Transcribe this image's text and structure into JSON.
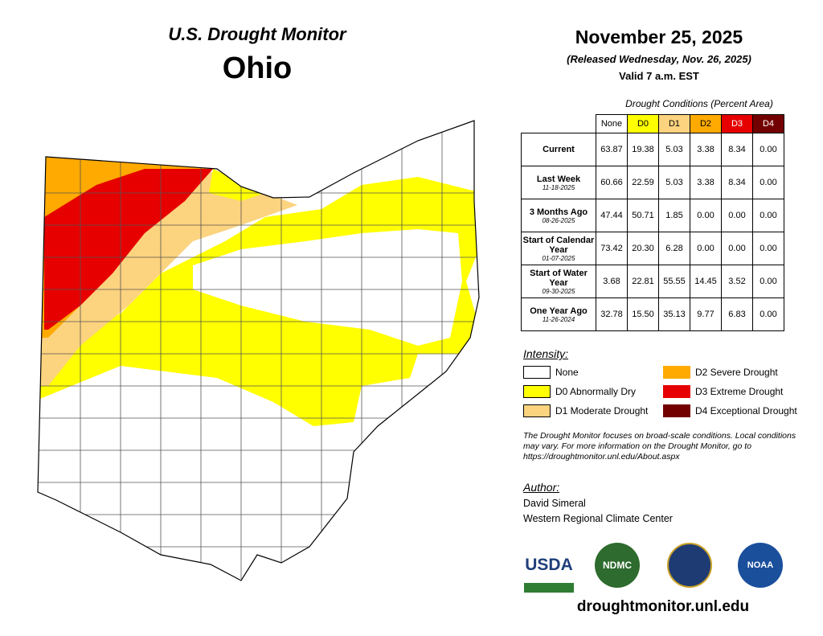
{
  "header": {
    "title": "U.S. Drought Monitor",
    "state": "Ohio",
    "date": "November 25, 2025",
    "released": "(Released Wednesday, Nov. 26, 2025)",
    "valid": "Valid 7 a.m. EST"
  },
  "table": {
    "caption": "Drought Conditions (Percent Area)",
    "columns": [
      {
        "label": "None",
        "color": "#ffffff",
        "text": "#000000"
      },
      {
        "label": "D0",
        "color": "#ffff00",
        "text": "#000000"
      },
      {
        "label": "D1",
        "color": "#fcd37f",
        "text": "#000000"
      },
      {
        "label": "D2",
        "color": "#ffaa00",
        "text": "#000000"
      },
      {
        "label": "D3",
        "color": "#e60000",
        "text": "#ffffff"
      },
      {
        "label": "D4",
        "color": "#730000",
        "text": "#ffffff"
      }
    ],
    "rows": [
      {
        "label": "Current",
        "values": [
          "63.87",
          "19.38",
          "5.03",
          "3.38",
          "8.34",
          "0.00"
        ]
      },
      {
        "label": "Last Week",
        "date": "11-18-2025",
        "values": [
          "60.66",
          "22.59",
          "5.03",
          "3.38",
          "8.34",
          "0.00"
        ]
      },
      {
        "label": "3 Months Ago",
        "date": "08-26-2025",
        "values": [
          "47.44",
          "50.71",
          "1.85",
          "0.00",
          "0.00",
          "0.00"
        ]
      },
      {
        "label": "Start of Calendar Year",
        "date": "01-07-2025",
        "values": [
          "73.42",
          "20.30",
          "6.28",
          "0.00",
          "0.00",
          "0.00"
        ]
      },
      {
        "label": "Start of Water Year",
        "date": "09-30-2025",
        "values": [
          "3.68",
          "22.81",
          "55.55",
          "14.45",
          "3.52",
          "0.00"
        ]
      },
      {
        "label": "One Year Ago",
        "date": "11-26-2024",
        "values": [
          "32.78",
          "15.50",
          "35.13",
          "9.77",
          "6.83",
          "0.00"
        ]
      }
    ]
  },
  "legend": {
    "title": "Intensity:",
    "items": [
      {
        "label": "None",
        "color": "#ffffff"
      },
      {
        "label": "D0 Abnormally Dry",
        "color": "#ffff00"
      },
      {
        "label": "D1 Moderate Drought",
        "color": "#fcd37f"
      },
      {
        "label": "D2 Severe Drought",
        "color": "#ffaa00"
      },
      {
        "label": "D3 Extreme Drought",
        "color": "#e60000"
      },
      {
        "label": "D4 Exceptional Drought",
        "color": "#730000"
      }
    ]
  },
  "note": "The Drought Monitor focuses on broad-scale conditions. Local conditions may vary. For more information on the Drought Monitor, go to https://droughtmonitor.unl.edu/About.aspx",
  "author": {
    "heading": "Author:",
    "name": "David Simeral",
    "org": "Western Regional Climate Center"
  },
  "logos": [
    "USDA",
    "NDMC",
    "NOAA"
  ],
  "url": "droughtmonitor.unl.edu"
}
